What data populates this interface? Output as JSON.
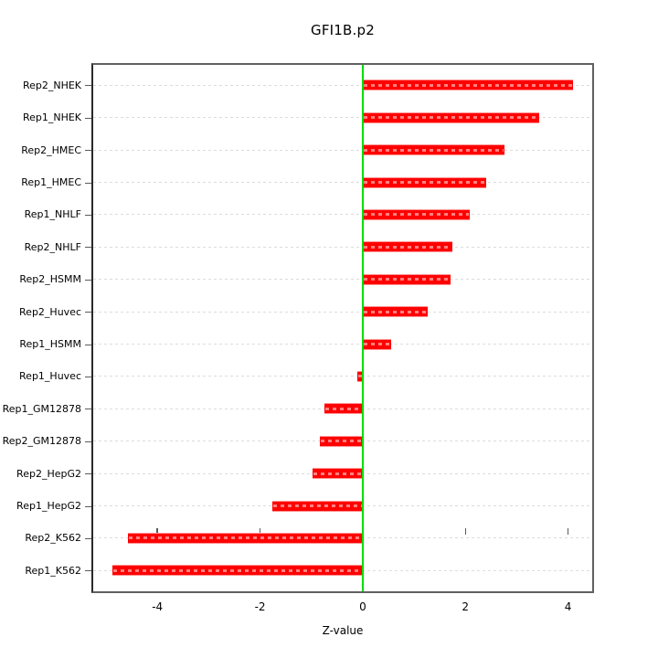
{
  "title": "GFI1B.p2",
  "chart_data": {
    "type": "bar",
    "orientation": "horizontal",
    "title": "GFI1B.p2",
    "xlabel": "Z-value",
    "ylabel": "",
    "categories": [
      "Rep2_NHEK",
      "Rep1_NHEK",
      "Rep2_HMEC",
      "Rep1_HMEC",
      "Rep1_NHLF",
      "Rep2_NHLF",
      "Rep2_HSMM",
      "Rep2_Huvec",
      "Rep1_HSMM",
      "Rep1_Huvec",
      "Rep1_GM12878",
      "Rep2_GM12878",
      "Rep2_HepG2",
      "Rep1_HepG2",
      "Rep2_K562",
      "Rep1_K562"
    ],
    "values": [
      4.1,
      3.43,
      2.76,
      2.4,
      2.08,
      1.75,
      1.71,
      1.26,
      0.55,
      -0.11,
      -0.74,
      -0.84,
      -0.98,
      -1.76,
      -4.57,
      -4.88
    ],
    "xlim": [
      -5.25,
      4.47
    ],
    "xticks": [
      -4,
      -2,
      0,
      2,
      4
    ],
    "xtick_labels": [
      "-4",
      "-2",
      "0",
      "2",
      "4"
    ],
    "zero_reference_line": 0,
    "grid": "dashed horizontal line per category",
    "legend": "none",
    "colors": {
      "bar_fill": "#ff0000",
      "bar_border": "#ff9090",
      "zero_line": "#00dd00",
      "gridline": "#dcdcdc",
      "axis": "#5a5a5a",
      "text": "#000000",
      "background": "#ffffff"
    }
  }
}
